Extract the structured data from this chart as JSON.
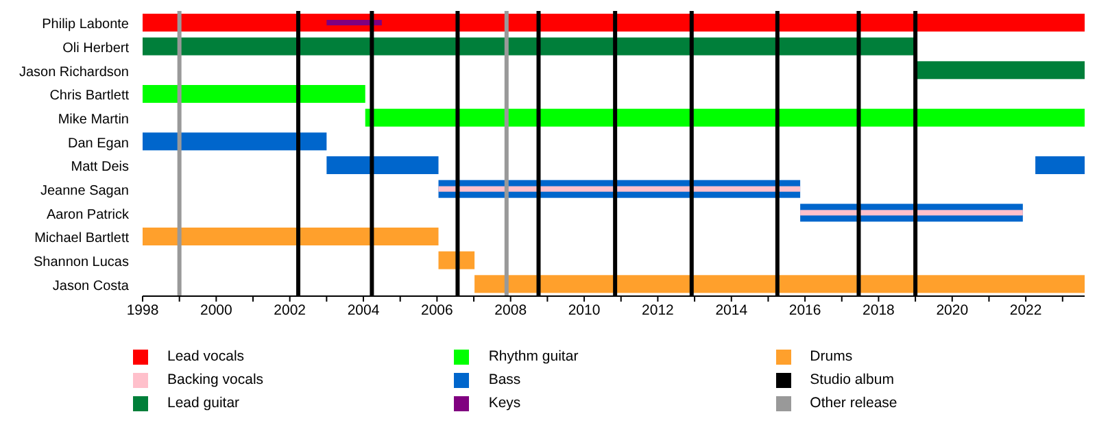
{
  "chart_data": {
    "type": "bar",
    "orientation": "horizontal",
    "categories": [
      "Philip Labonte",
      "Oli Herbert",
      "Jason Richardson",
      "Chris Bartlett",
      "Mike Martin",
      "Dan Egan",
      "Matt Deis",
      "Jeanne Sagan",
      "Aaron Patrick",
      "Michael Bartlett",
      "Shannon Lucas",
      "Jason Costa"
    ],
    "xlim": [
      1998,
      2023.6
    ],
    "xticks": [
      1998,
      {
        "value": 1999,
        "label": null
      },
      2000,
      {
        "value": 2001,
        "label": null
      },
      2002,
      {
        "value": 2003,
        "label": null
      },
      2004,
      {
        "value": 2005,
        "label": null
      },
      2006,
      {
        "value": 2007,
        "label": null
      },
      2008,
      {
        "value": 2009,
        "label": null
      },
      2010,
      {
        "value": 2011,
        "label": null
      },
      2012,
      {
        "value": 2013,
        "label": null
      },
      2014,
      {
        "value": 2015,
        "label": null
      },
      2016,
      {
        "value": 2017,
        "label": null
      },
      2018,
      {
        "value": 2019,
        "label": null
      },
      2020,
      {
        "value": 2021,
        "label": null
      },
      2022,
      {
        "value": 2023,
        "label": null
      }
    ],
    "series": [
      {
        "name": "Lead vocals",
        "color": "#ff0000",
        "base": [
          1998,
          null,
          null,
          null,
          null,
          null,
          null,
          null,
          null,
          null,
          null,
          null
        ],
        "values": [
          25.6,
          null,
          null,
          null,
          null,
          null,
          null,
          null,
          null,
          null,
          null,
          null
        ]
      },
      {
        "name": "Backing vocals",
        "color": "#ffc0cb",
        "base": [
          null,
          null,
          null,
          null,
          null,
          null,
          null,
          2006.04,
          2015.87,
          null,
          null,
          null
        ],
        "values": [
          null,
          null,
          null,
          null,
          null,
          null,
          null,
          9.83,
          6.05,
          null,
          null,
          null
        ]
      },
      {
        "name": "Lead guitar",
        "color": "#007f3a",
        "base": [
          null,
          1998,
          2019.0,
          null,
          null,
          null,
          null,
          null,
          null,
          null,
          null,
          null
        ],
        "values": [
          null,
          21.0,
          4.6,
          null,
          null,
          null,
          null,
          null,
          null,
          null,
          null,
          null
        ]
      },
      {
        "name": "Rhythm guitar",
        "color": "#00ff00",
        "base": [
          null,
          null,
          null,
          1998,
          2004.05,
          null,
          null,
          null,
          null,
          null,
          null,
          null
        ],
        "values": [
          null,
          null,
          null,
          6.05,
          19.55,
          null,
          null,
          null,
          null,
          null,
          null,
          null
        ]
      },
      {
        "name": "Bass",
        "color": "#0066cc",
        "base": [
          null,
          null,
          null,
          null,
          null,
          1998,
          2003.0,
          2006.04,
          2015.87,
          null,
          null,
          null
        ],
        "values": [
          null,
          null,
          null,
          null,
          null,
          5.0,
          3.04,
          9.83,
          6.05,
          null,
          null,
          null
        ]
      },
      {
        "color": "#0066cc",
        "base": [
          null,
          null,
          null,
          null,
          null,
          null,
          2022.26,
          null,
          null,
          null,
          null,
          null
        ],
        "values": [
          null,
          null,
          null,
          null,
          null,
          null,
          1.34,
          null,
          null,
          null,
          null,
          null
        ]
      },
      {
        "name": "Keys",
        "color": "#800080",
        "base": [
          2003.0,
          null,
          null,
          null,
          null,
          null,
          null,
          null,
          null,
          null,
          null,
          null
        ],
        "values": [
          1.5,
          null,
          null,
          null,
          null,
          null,
          null,
          null,
          null,
          null,
          null,
          null
        ]
      },
      {
        "name": "Drums",
        "color": "#ffa02c",
        "base": [
          null,
          null,
          null,
          null,
          null,
          null,
          null,
          null,
          null,
          1998,
          2006.04,
          2007.02
        ],
        "values": [
          null,
          null,
          null,
          null,
          null,
          null,
          null,
          null,
          null,
          8.04,
          0.98,
          16.58
        ]
      },
      {
        "name": "Studio album",
        "color": "#000000",
        "values": [
          null,
          null,
          null,
          null,
          null,
          null,
          null,
          null,
          null,
          null,
          null,
          null
        ]
      },
      {
        "name": "Other release",
        "color": "#999999",
        "values": [
          null,
          null,
          null,
          null,
          null,
          null,
          null,
          null,
          null,
          null,
          null,
          null
        ]
      }
    ],
    "ref_lines": [
      {
        "axis": "x",
        "value": 1999.0,
        "color": "#999999"
      },
      {
        "axis": "x",
        "value": 2002.23,
        "color": "#000000"
      },
      {
        "axis": "x",
        "value": 2004.23,
        "color": "#000000"
      },
      {
        "axis": "x",
        "value": 2006.56,
        "color": "#000000"
      },
      {
        "axis": "x",
        "value": 2007.89,
        "color": "#999999"
      },
      {
        "axis": "x",
        "value": 2008.76,
        "color": "#000000"
      },
      {
        "axis": "x",
        "value": 2010.84,
        "color": "#000000"
      },
      {
        "axis": "x",
        "value": 2012.92,
        "color": "#000000"
      },
      {
        "axis": "x",
        "value": 2015.25,
        "color": "#000000"
      },
      {
        "axis": "x",
        "value": 2017.46,
        "color": "#000000"
      },
      {
        "axis": "x",
        "value": 2019.0,
        "color": "#000000"
      }
    ],
    "legend": "bottom"
  }
}
